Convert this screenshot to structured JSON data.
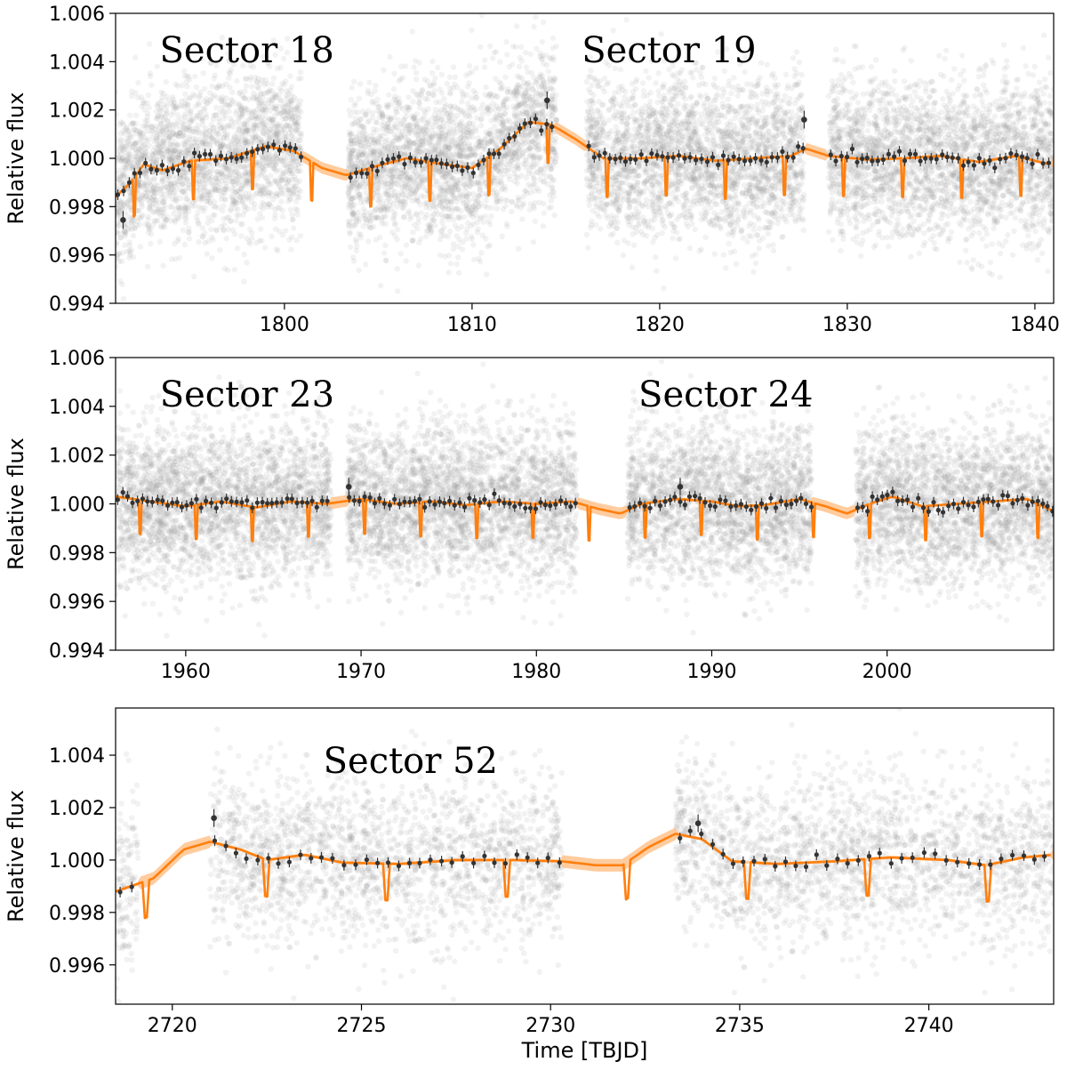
{
  "colors": {
    "scatter": "#9a9a9a",
    "binned": "#333333",
    "model": "#ff7f0e",
    "band": "#ffbf86",
    "frame": "#000000"
  },
  "chart_data": [
    {
      "type": "scatter",
      "ylabel": "Relative flux",
      "xlabel": "",
      "xlim": [
        1791,
        1841
      ],
      "ylim": [
        0.994,
        1.006
      ],
      "xticks": [
        1800,
        1810,
        1820,
        1830,
        1840
      ],
      "xtick_labels": [
        "1800",
        "1810",
        "1820",
        "1830",
        "1840"
      ],
      "yticks": [
        0.994,
        0.996,
        0.998,
        1.0,
        1.002,
        1.004,
        1.006
      ],
      "ytick_labels": [
        "0.994",
        "0.996",
        "0.998",
        "1.000",
        "1.002",
        "1.004",
        "1.006"
      ],
      "annotations": [
        {
          "text": "Sector 18",
          "x": 1798,
          "y": 1.0045
        },
        {
          "text": "Sector 19",
          "x": 1820.5,
          "y": 1.0045
        }
      ],
      "segments": [
        [
          1791,
          1800.9
        ],
        [
          1803.4,
          1814.5
        ],
        [
          1816.1,
          1827.7
        ],
        [
          1829,
          1841
        ]
      ],
      "trend": [
        [
          1791,
          0.9984
        ],
        [
          1791.8,
          0.999
        ],
        [
          1792.5,
          0.99975
        ],
        [
          1793.5,
          0.9995
        ],
        [
          1795,
          0.9999
        ],
        [
          1797,
          1.0
        ],
        [
          1799,
          1.0005
        ],
        [
          1800.5,
          1.0003
        ],
        [
          1802,
          0.9996
        ],
        [
          1803.3,
          0.9993
        ],
        [
          1805,
          0.9997
        ],
        [
          1806.5,
          1.0
        ],
        [
          1808.5,
          0.99975
        ],
        [
          1810,
          0.9996
        ],
        [
          1811.5,
          1.0004
        ],
        [
          1813,
          1.0015
        ],
        [
          1814.2,
          1.0014
        ],
        [
          1815.5,
          1.0008
        ],
        [
          1817,
          1.0
        ],
        [
          1819,
          1.0
        ],
        [
          1821,
          1.0001
        ],
        [
          1823,
          0.9999
        ],
        [
          1825,
          1.0
        ],
        [
          1827,
          1.0001
        ],
        [
          1827.8,
          1.0004
        ],
        [
          1829,
          1.0001
        ],
        [
          1831,
          0.99995
        ],
        [
          1833,
          1.0
        ],
        [
          1835,
          1.0001
        ],
        [
          1837,
          0.99985
        ],
        [
          1839,
          1.0001
        ],
        [
          1840.5,
          0.9998
        ],
        [
          1841,
          0.9998
        ]
      ],
      "transits": [
        1792.0,
        1795.15,
        1798.3,
        1801.45,
        1804.6,
        1807.75,
        1810.9,
        1814.05,
        1817.2,
        1820.35,
        1823.5,
        1826.65,
        1829.8,
        1832.95,
        1836.1,
        1839.25
      ],
      "transit_depth": 0.0016,
      "outliers": [
        [
          1791.4,
          0.99745
        ],
        [
          1814.0,
          1.0024
        ],
        [
          1827.7,
          1.0016
        ]
      ]
    },
    {
      "type": "scatter",
      "ylabel": "Relative flux",
      "xlabel": "",
      "xlim": [
        1956,
        2009.5
      ],
      "ylim": [
        0.994,
        1.006
      ],
      "xticks": [
        1960,
        1970,
        1980,
        1990,
        2000
      ],
      "xtick_labels": [
        "1960",
        "1970",
        "1980",
        "1990",
        "2000"
      ],
      "yticks": [
        0.994,
        0.996,
        0.998,
        1.0,
        1.002,
        1.004,
        1.006
      ],
      "ytick_labels": [
        "0.994",
        "0.996",
        "0.998",
        "1.000",
        "1.002",
        "1.004",
        "1.006"
      ],
      "annotations": [
        {
          "text": "Sector 23",
          "x": 1963.5,
          "y": 1.0045
        },
        {
          "text": "Sector 24",
          "x": 1990.8,
          "y": 1.0045
        }
      ],
      "segments": [
        [
          1956,
          1968.3
        ],
        [
          1969.2,
          1982.3
        ],
        [
          1985.2,
          1995.7
        ],
        [
          1998.2,
          2009.5
        ]
      ],
      "trend": [
        [
          1956,
          1.0003
        ],
        [
          1958,
          1.0001
        ],
        [
          1960,
          0.9999
        ],
        [
          1962,
          1.0001
        ],
        [
          1964,
          0.99985
        ],
        [
          1966,
          1.0001
        ],
        [
          1968,
          1.0
        ],
        [
          1970,
          1.0002
        ],
        [
          1972,
          1.0
        ],
        [
          1974,
          1.0001
        ],
        [
          1976,
          0.99995
        ],
        [
          1978,
          1.0001
        ],
        [
          1980,
          1.0
        ],
        [
          1982,
          1.0001
        ],
        [
          1983.5,
          0.9998
        ],
        [
          1984.8,
          0.9996
        ],
        [
          1986,
          1.0
        ],
        [
          1988,
          1.0002
        ],
        [
          1990,
          1.0001
        ],
        [
          1991.5,
          0.9999
        ],
        [
          1993,
          0.99995
        ],
        [
          1995,
          1.0002
        ],
        [
          1996.5,
          0.9999
        ],
        [
          1997.7,
          0.9996
        ],
        [
          1999,
          1.0
        ],
        [
          2000.3,
          1.0003
        ],
        [
          2002,
          0.9999
        ],
        [
          2004,
          1.0
        ],
        [
          2006,
          1.0001
        ],
        [
          2008,
          1.0002
        ],
        [
          2009.5,
          0.9997
        ]
      ],
      "transits": [
        1957.4,
        1960.6,
        1963.8,
        1967.0,
        1970.2,
        1973.4,
        1976.6,
        1979.8,
        1983.0,
        1986.2,
        1989.4,
        1992.6,
        1995.8,
        1999.0,
        2002.2,
        2005.4,
        2008.6
      ],
      "transit_depth": 0.0014,
      "outliers": [
        [
          1988.2,
          1.0007
        ],
        [
          1969.3,
          1.0007
        ]
      ]
    },
    {
      "type": "scatter",
      "ylabel": "Relative flux",
      "xlabel": "Time [TBJD]",
      "xlim": [
        2718.5,
        2743.3
      ],
      "ylim": [
        0.9945,
        1.0058
      ],
      "xticks": [
        2720,
        2725,
        2730,
        2735,
        2740
      ],
      "xtick_labels": [
        "2720",
        "2725",
        "2730",
        "2735",
        "2740"
      ],
      "yticks": [
        0.996,
        0.998,
        1.0,
        1.002,
        1.004
      ],
      "ytick_labels": [
        "0.996",
        "0.998",
        "1.000",
        "1.002",
        "1.004"
      ],
      "annotations": [
        {
          "text": "Sector 52",
          "x": 2726.3,
          "y": 1.0038
        }
      ],
      "segments": [
        [
          2718.5,
          2719.1
        ],
        [
          2721.0,
          2730.3
        ],
        [
          2733.3,
          2743.3
        ]
      ],
      "trend": [
        [
          2718.5,
          0.9988
        ],
        [
          2719.5,
          0.9993
        ],
        [
          2720.3,
          1.0004
        ],
        [
          2721.0,
          1.0007
        ],
        [
          2721.8,
          1.0004
        ],
        [
          2722.5,
          1.0
        ],
        [
          2723.5,
          1.0002
        ],
        [
          2724.5,
          0.9999
        ],
        [
          2726,
          0.99985
        ],
        [
          2727.5,
          1.0
        ],
        [
          2729,
          1.0
        ],
        [
          2730.3,
          0.99995
        ],
        [
          2731.2,
          0.9998
        ],
        [
          2731.9,
          0.9998
        ],
        [
          2732.6,
          1.0005
        ],
        [
          2733.3,
          1.001
        ],
        [
          2734.0,
          1.0008
        ],
        [
          2734.8,
          0.99995
        ],
        [
          2736,
          0.99985
        ],
        [
          2737.5,
          0.99995
        ],
        [
          2739,
          1.0001
        ],
        [
          2740.5,
          1.0
        ],
        [
          2741.5,
          0.9998
        ],
        [
          2742.5,
          1.0001
        ],
        [
          2743.3,
          1.0002
        ]
      ],
      "transits": [
        2719.3,
        2722.48,
        2725.66,
        2728.84,
        2732.02,
        2735.2,
        2738.38,
        2741.56
      ],
      "transit_depth": 0.0014,
      "outliers": [
        [
          2721.1,
          1.0016
        ],
        [
          2733.9,
          1.0014
        ]
      ]
    }
  ]
}
